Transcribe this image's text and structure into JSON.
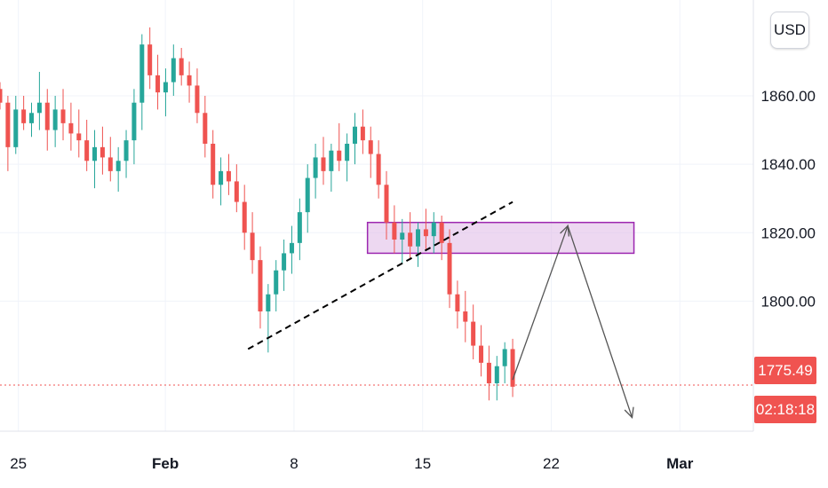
{
  "currency": "USD",
  "price": {
    "current_label": "1775.49",
    "countdown": "02:18:18",
    "current_value": 1775.49,
    "color": "#f05350"
  },
  "colors": {
    "up": "#26a69a",
    "down": "#ef5350",
    "zone_fill": "#e1bee7",
    "zone_stroke": "#9c27b0",
    "arrow": "#555555",
    "trendline": "#000000",
    "grid": "#f0f3fa"
  },
  "chart_data": {
    "type": "candlestick",
    "symbol_currency": "USD",
    "y_axis": {
      "ticks": [
        "1860.00",
        "1840.00",
        "1820.00",
        "1800.00"
      ],
      "tick_values": [
        1860,
        1840,
        1820,
        1800
      ],
      "range": [
        1762,
        1888
      ]
    },
    "x_axis": {
      "ticks": [
        {
          "label": "25",
          "day": -7,
          "bold": false
        },
        {
          "label": "Feb",
          "day": 1,
          "bold": true
        },
        {
          "label": "8",
          "day": 8,
          "bold": false
        },
        {
          "label": "15",
          "day": 15,
          "bold": false
        },
        {
          "label": "22",
          "day": 22,
          "bold": false
        },
        {
          "label": "Mar",
          "day": 29,
          "bold": true
        }
      ],
      "range_days": [
        -8.0,
        33.0
      ]
    },
    "trendline": {
      "from": [
        5.5,
        1786
      ],
      "to": [
        19.9,
        1829
      ]
    },
    "resistance_zone": {
      "day_from": 12.0,
      "day_to": 26.5,
      "price_low": 1814,
      "price_high": 1823
    },
    "projection_path": [
      [
        19.9,
        1777
      ],
      [
        22.9,
        1822
      ],
      [
        26.4,
        1766
      ]
    ],
    "current_price": 1775.49,
    "candles": [
      [
        1862,
        1864,
        1856,
        1858
      ],
      [
        1858,
        1860,
        1838,
        1845
      ],
      [
        1845,
        1860,
        1843,
        1856
      ],
      [
        1856,
        1860,
        1850,
        1852
      ],
      [
        1852,
        1858,
        1848,
        1855
      ],
      [
        1855,
        1867,
        1850,
        1858
      ],
      [
        1858,
        1862,
        1844,
        1850
      ],
      [
        1850,
        1860,
        1845,
        1856
      ],
      [
        1856,
        1862,
        1847,
        1852
      ],
      [
        1852,
        1858,
        1844,
        1849
      ],
      [
        1849,
        1856,
        1842,
        1847
      ],
      [
        1847,
        1853,
        1838,
        1841
      ],
      [
        1841,
        1850,
        1833,
        1845
      ],
      [
        1845,
        1851,
        1837,
        1842
      ],
      [
        1842,
        1848,
        1835,
        1838
      ],
      [
        1838,
        1845,
        1832,
        1841
      ],
      [
        1841,
        1850,
        1836,
        1847
      ],
      [
        1847,
        1862,
        1840,
        1858
      ],
      [
        1858,
        1878,
        1850,
        1875
      ],
      [
        1875,
        1880,
        1862,
        1866
      ],
      [
        1866,
        1872,
        1856,
        1861
      ],
      [
        1861,
        1868,
        1854,
        1864
      ],
      [
        1864,
        1875,
        1860,
        1871
      ],
      [
        1871,
        1874,
        1863,
        1866
      ],
      [
        1866,
        1870,
        1858,
        1863
      ],
      [
        1863,
        1868,
        1852,
        1855
      ],
      [
        1855,
        1860,
        1842,
        1846
      ],
      [
        1846,
        1850,
        1830,
        1834
      ],
      [
        1834,
        1842,
        1828,
        1838
      ],
      [
        1838,
        1843,
        1831,
        1835
      ],
      [
        1835,
        1840,
        1826,
        1829
      ],
      [
        1829,
        1834,
        1815,
        1820
      ],
      [
        1820,
        1826,
        1808,
        1812
      ],
      [
        1812,
        1816,
        1792,
        1797
      ],
      [
        1797,
        1805,
        1785,
        1802
      ],
      [
        1802,
        1812,
        1797,
        1809
      ],
      [
        1809,
        1818,
        1803,
        1814
      ],
      [
        1814,
        1822,
        1808,
        1817
      ],
      [
        1817,
        1830,
        1812,
        1826
      ],
      [
        1826,
        1840,
        1820,
        1836
      ],
      [
        1836,
        1846,
        1830,
        1842
      ],
      [
        1842,
        1848,
        1834,
        1838
      ],
      [
        1838,
        1846,
        1832,
        1844
      ],
      [
        1844,
        1852,
        1838,
        1841
      ],
      [
        1841,
        1849,
        1835,
        1846
      ],
      [
        1846,
        1855,
        1840,
        1851
      ],
      [
        1851,
        1856,
        1843,
        1847
      ],
      [
        1847,
        1851,
        1836,
        1843
      ],
      [
        1843,
        1847,
        1830,
        1834
      ],
      [
        1834,
        1838,
        1818,
        1823
      ],
      [
        1823,
        1828,
        1814,
        1818
      ],
      [
        1818,
        1824,
        1811,
        1820
      ],
      [
        1820,
        1826,
        1812,
        1816
      ],
      [
        1816,
        1823,
        1810,
        1821
      ],
      [
        1821,
        1827,
        1815,
        1819
      ],
      [
        1819,
        1826,
        1814,
        1823
      ],
      [
        1823,
        1825,
        1812,
        1817
      ],
      [
        1817,
        1821,
        1798,
        1802
      ],
      [
        1802,
        1806,
        1792,
        1797
      ],
      [
        1797,
        1803,
        1788,
        1794
      ],
      [
        1794,
        1799,
        1783,
        1787
      ],
      [
        1787,
        1793,
        1778,
        1782
      ],
      [
        1782,
        1787,
        1771,
        1776
      ],
      [
        1776,
        1784,
        1771,
        1781
      ],
      [
        1781,
        1788,
        1776,
        1786
      ],
      [
        1786,
        1789,
        1772,
        1775
      ]
    ]
  }
}
